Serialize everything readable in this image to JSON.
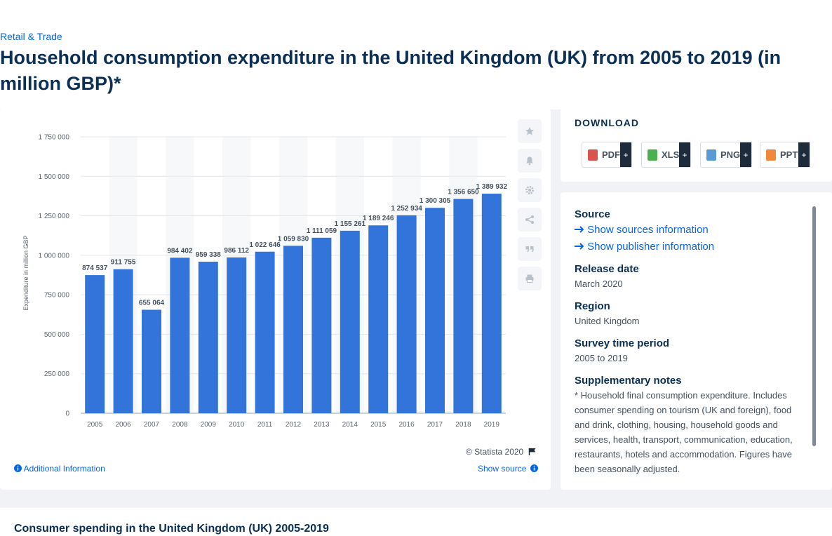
{
  "breadcrumb": "Retail & Trade",
  "page_title": "Household consumption expenditure in the United Kingdom (UK) from 2005 to 2019 (in million GBP)*",
  "chart_data": {
    "type": "bar",
    "categories": [
      "2005",
      "2006",
      "2007",
      "2008",
      "2009",
      "2010",
      "2011",
      "2012",
      "2013",
      "2014",
      "2015",
      "2016",
      "2017",
      "2018",
      "2019"
    ],
    "values": [
      874537,
      911755,
      655064,
      984402,
      959338,
      986112,
      1022646,
      1059830,
      1111059,
      1155261,
      1189246,
      1252934,
      1300305,
      1356650,
      1389932
    ],
    "value_labels": [
      "874 537",
      "911 755",
      "655 064",
      "984 402",
      "959 338",
      "986 112",
      "1 022 646",
      "1 059 830",
      "1 111 059",
      "1 155 261",
      "1 189 246",
      "1 252 934",
      "1 300 305",
      "1 356 650",
      "1 389 932"
    ],
    "ylabel": "Expenditure in million GBP",
    "ylim": [
      0,
      1750000
    ],
    "yticks": [
      0,
      250000,
      500000,
      750000,
      1000000,
      1250000,
      1500000,
      1750000
    ],
    "ytick_labels": [
      "0",
      "250 000",
      "500 000",
      "750 000",
      "1 000 000",
      "1 250 000",
      "1 500 000",
      "1 750 000"
    ],
    "bar_color": "#3274d9",
    "grid": true
  },
  "chart_footer": {
    "copyright": "© Statista 2020",
    "additional_info": "Additional Information",
    "show_source": "Show source"
  },
  "download": {
    "title": "DOWNLOAD",
    "buttons": [
      {
        "label": "PDF",
        "color": "#d9534f"
      },
      {
        "label": "XLS",
        "color": "#4caf50"
      },
      {
        "label": "PNG",
        "color": "#5b9bd5"
      },
      {
        "label": "PPT",
        "color": "#f0883e"
      }
    ],
    "plus": "+"
  },
  "info": {
    "source_heading": "Source",
    "show_sources": "Show sources information",
    "show_publisher": "Show publisher information",
    "release_heading": "Release date",
    "release_value": "March 2020",
    "region_heading": "Region",
    "region_value": "United Kingdom",
    "survey_heading": "Survey time period",
    "survey_value": "2005 to 2019",
    "notes_heading": "Supplementary notes",
    "notes_value": "* Household final consumption expenditure. Includes consumer spending on tourism (UK and foreign), food and drink, clothing, housing, household goods and services, health, transport, communication, education, restaurants, hotels and accommodation. Figures have been seasonally adjusted."
  },
  "related_title": "Consumer spending in the United Kingdom (UK) 2005-2019"
}
